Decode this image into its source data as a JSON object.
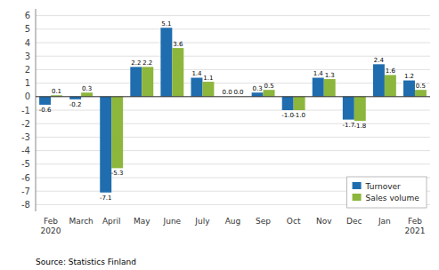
{
  "chart_data": {
    "type": "bar",
    "categories": [
      "Feb\n2020",
      "March",
      "April",
      "May",
      "June",
      "July",
      "Aug",
      "Sep",
      "Oct",
      "Nov",
      "Dec",
      "Jan",
      "Feb\n2021"
    ],
    "series": [
      {
        "name": "Turnover",
        "color": "#1F6DAE",
        "values": [
          -0.6,
          -0.2,
          -7.1,
          2.2,
          5.1,
          1.4,
          0.0,
          0.3,
          -1.0,
          1.4,
          -1.7,
          2.4,
          1.2
        ],
        "value_labels": [
          "-0.6",
          "-0.2",
          "-7.1",
          "2.2",
          "5.1",
          "1.4",
          "0.0",
          "0.3",
          "-1.0",
          "1.4",
          "-1.7",
          "2.4",
          "1.2"
        ]
      },
      {
        "name": "Sales volume",
        "color": "#8DB63C",
        "values": [
          0.1,
          0.3,
          -5.3,
          2.2,
          3.6,
          1.1,
          0.0,
          0.5,
          -1.0,
          1.3,
          -1.8,
          1.6,
          0.5
        ],
        "value_labels": [
          "0.1",
          "0.3",
          "-5.3",
          "2.2",
          "3.6",
          "1.1",
          "0.0",
          "0.5",
          "-1.0",
          "1.3",
          "-1.8",
          "1.6",
          "0.5"
        ]
      }
    ],
    "ylim": [
      -8.5,
      6.5
    ],
    "yticks": [
      -8,
      -7,
      -6,
      -5,
      -4,
      -3,
      -2,
      -1,
      0,
      1,
      2,
      3,
      4,
      5,
      6
    ],
    "grid": true,
    "legend": "lower right",
    "data_labels": true,
    "annotations": [
      "Source: Statistics Finland"
    ]
  }
}
